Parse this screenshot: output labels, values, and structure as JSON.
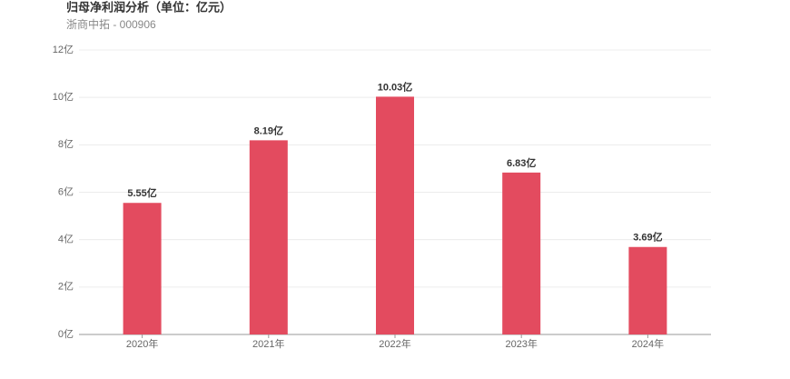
{
  "chart_data": {
    "type": "bar",
    "title": "归母净利润分析（单位：亿元）",
    "subtitle": "浙商中拓 - 000906",
    "categories": [
      "2020年",
      "2021年",
      "2022年",
      "2023年",
      "2024年"
    ],
    "values": [
      5.55,
      8.19,
      10.03,
      6.83,
      3.69
    ],
    "value_labels": [
      "5.55亿",
      "8.19亿",
      "10.03亿",
      "6.83亿",
      "3.69亿"
    ],
    "color": "#e34b5f",
    "ylim": [
      0,
      12
    ],
    "yticks": [
      {
        "value": 0,
        "label": "0亿"
      },
      {
        "value": 2,
        "label": "2亿"
      },
      {
        "value": 4,
        "label": "4亿"
      },
      {
        "value": 6,
        "label": "6亿"
      },
      {
        "value": 8,
        "label": "8亿"
      },
      {
        "value": 10,
        "label": "10亿"
      },
      {
        "value": 12,
        "label": "12亿"
      }
    ],
    "grid": true
  }
}
